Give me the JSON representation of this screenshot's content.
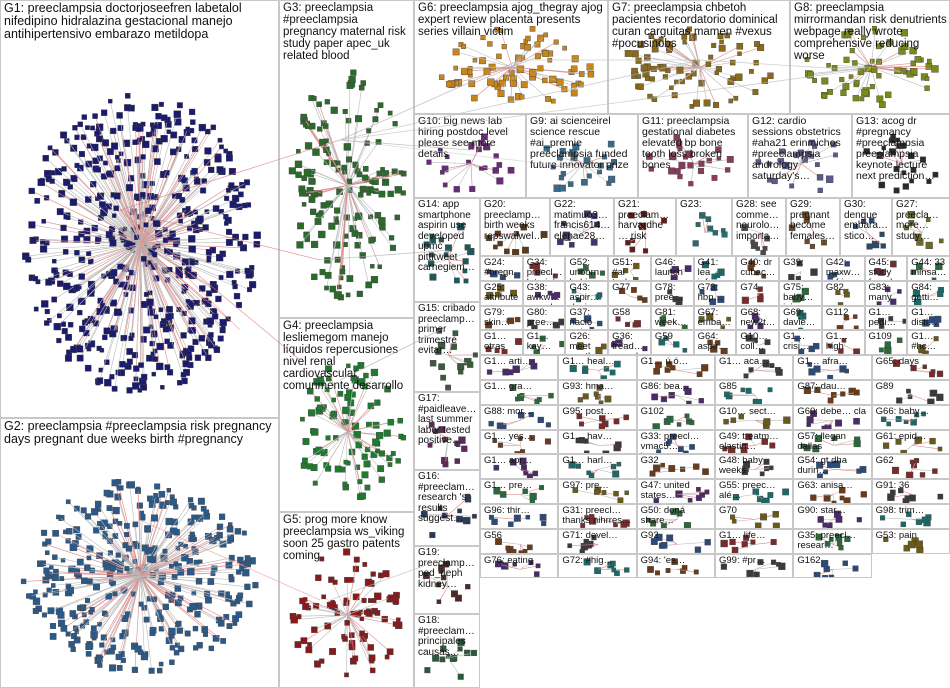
{
  "graph_title": "",
  "groups": [
    {
      "id": "G1",
      "text": "G1: preeclampsia doctorjoseefren labetalol nifedipino hidralazina gestacional manejo antihipertensivo embarazo metildopa",
      "color": "#1a1a6e"
    },
    {
      "id": "G2",
      "text": "G2: preeclampsia #preeclampsia risk pregnancy days pregnant due weeks birth #pregnancy",
      "color": "#2a5a8a"
    },
    {
      "id": "G3",
      "text": "G3: preeclampsia #preeclampsia pregnancy maternal risk study paper apec_uk related blood",
      "color": "#2a6a2a"
    },
    {
      "id": "G4",
      "text": "G4: preeclampsia lesliemegom manejo líquidos repercusiones nivel renal cardiovascular comunmente desarrollo",
      "color": "#1e7a2e"
    },
    {
      "id": "G5",
      "text": "G5: prog more know preeclampsia ws_viking soon 25 gastro patents coming",
      "color": "#8a1a1a"
    },
    {
      "id": "G6",
      "text": "G6: preeclampsia ajog_thegray ajog expert review placenta presents series villain victim",
      "color": "#c8861a"
    },
    {
      "id": "G7",
      "text": "G7: preeclampsia chbetoh pacientes recordatorio dominical curan carguitas mamen #vexus #pocusinobs",
      "color": "#8a6a1a"
    },
    {
      "id": "G8",
      "text": "G8: preeclampsia mirrormandan risk denutrients webpage really wrote comprehensive reducing worse",
      "color": "#7a8a1a"
    },
    {
      "id": "G10",
      "text": "G10: big news lab hiring postdoc level please see more details",
      "color": "#6a2a7a"
    },
    {
      "id": "G9",
      "text": "G9: ai scienceirel science rescue #ai_premie preeclampsia funded future innovator prize",
      "color": "#3a6a8a"
    },
    {
      "id": "G11",
      "text": "G11: preeclampsia gestational diabetes elevated bp bone tooth loss broken bones",
      "color": "#8a3a5a"
    },
    {
      "id": "G12",
      "text": "G12: cardio sessions obstetrics #aha21 erinmichos #preeclampsia andrology saturday's…",
      "color": "#5a5a8a"
    },
    {
      "id": "G13",
      "text": "G13: acog dr #pregnancy #preeclampsia preeclampsia keynote lecture next prediction…",
      "color": "#2a2a2a"
    },
    {
      "id": "G14",
      "text": "G14: app smartphone aspirin use developed upmc pittitweet carnegiem…",
      "color": "#1a5a5a"
    },
    {
      "id": "G20",
      "text": "G20: preeclamp… birth weeks repswalwel…",
      "color": "#5a3a1a"
    },
    {
      "id": "G22",
      "text": "G22: matimuo3… francis614… elenae28…",
      "color": "#3a3a6a"
    },
    {
      "id": "G21",
      "text": "G21: preeclam… harvardhe… risk",
      "color": "#6a1a1a"
    },
    {
      "id": "G23",
      "text": "G23:",
      "color": "#2a6a6a"
    },
    {
      "id": "G28",
      "text": "G28: see comme… neurolo… importa…",
      "color": "#4a4a4a"
    },
    {
      "id": "G29",
      "text": "G29: pregnant become females…",
      "color": "#6a4a2a"
    },
    {
      "id": "G30",
      "text": "G30: dengue embara… stico…",
      "color": "#2a4a6a"
    },
    {
      "id": "G27",
      "text": "G27: preecla… more… study…",
      "color": "#6a6a2a"
    },
    {
      "id": "G15",
      "text": "G15: cribado preeclamp… primer trimestre evitar…",
      "color": "#3a5a3a"
    },
    {
      "id": "G17",
      "text": "G17: #paidleave… last summer labor tested positive…",
      "color": "#5a2a5a"
    },
    {
      "id": "G16",
      "text": "G16: #preeclam… research 's results suggest…",
      "color": "#2a3a5a"
    },
    {
      "id": "G19",
      "text": "G19: preeclamp… ped_neph kidney…",
      "color": "#4a2a2a"
    },
    {
      "id": "G18",
      "text": "G18: #preeclam… principales causas…",
      "color": "#2a5a3a"
    }
  ],
  "small_groups": [
    {
      "text": "G24: #pregn… #cardi… #preec…"
    },
    {
      "text": "G34: preecl… latarjet vienn…"
    },
    {
      "text": "G52: unborn babie…"
    },
    {
      "text": "G51: #ai techn…"
    },
    {
      "text": "G46: launch ventur…"
    },
    {
      "text": "G41: lea inform…"
    },
    {
      "text": "G40: dr cubac… espec…"
    },
    {
      "text": "G39:"
    },
    {
      "text": "G42: maxw… asfrie…"
    },
    {
      "text": "G45: study found…"
    },
    {
      "text": "G44: 33 minsa…"
    },
    {
      "text": "G25: attribute success medici…"
    },
    {
      "text": "G38: awkw… preecl…"
    },
    {
      "text": "G43: aspir… dosi…"
    },
    {
      "text": "G77"
    },
    {
      "text": "G78: pree…"
    },
    {
      "text": "G73: hbp…"
    },
    {
      "text": "G74"
    },
    {
      "text": "G75: baby… join…"
    },
    {
      "text": "G82"
    },
    {
      "text": "G83: many"
    },
    {
      "text": "G84: getti…"
    },
    {
      "text": "G79: skin…"
    },
    {
      "text": "G80: pree…"
    },
    {
      "text": "G37: nació toda…"
    },
    {
      "text": "G58"
    },
    {
      "text": "G81: week…"
    },
    {
      "text": "G67: emba…"
    },
    {
      "text": "G68: new2t…"
    },
    {
      "text": "G69: davie…"
    },
    {
      "text": "G112"
    },
    {
      "text": "G1… pedi…"
    },
    {
      "text": "G1… disti…"
    },
    {
      "text": "G1… otras"
    },
    {
      "text": "G1… kay…"
    },
    {
      "text": "G26: meet another one…"
    },
    {
      "text": "G36: tread… preecl…"
    },
    {
      "text": "G59"
    },
    {
      "text": "G64: aspir…"
    },
    {
      "text": "G10… coll…"
    },
    {
      "text": "G1… crisi…"
    },
    {
      "text": "G1… high"
    },
    {
      "text": "G109"
    },
    {
      "text": "G1… #hc…"
    },
    {
      "text": "G1… arti…"
    },
    {
      "text": "G1… heal…"
    },
    {
      "text": "G1… ú ó…"
    },
    {
      "text": "G1… aca…"
    },
    {
      "text": "G1… afra…"
    },
    {
      "text": "G65: days"
    },
    {
      "text": "G1… gra…"
    },
    {
      "text": "G93: hma…"
    },
    {
      "text": "G86: bea…"
    },
    {
      "text": "G85"
    },
    {
      "text": "G87: dau…"
    },
    {
      "text": "G89"
    },
    {
      "text": "G88: mor…"
    },
    {
      "text": "G95: post…"
    },
    {
      "text": "G102"
    },
    {
      "text": "G10… sect…"
    },
    {
      "text": "G60: debe… cla"
    },
    {
      "text": "G66: baby…"
    },
    {
      "text": "G1… yes…"
    },
    {
      "text": "G1… hav…"
    },
    {
      "text": "G33: preecl… vmac5… having…"
    },
    {
      "text": "G49: treatm… elastin…"
    },
    {
      "text": "G57: llegan dallas"
    },
    {
      "text": "G61: epid…"
    },
    {
      "text": "G1… apr…"
    },
    {
      "text": "G1… harl…"
    },
    {
      "text": "G32"
    },
    {
      "text": "G48: baby weeks"
    },
    {
      "text": "G54: gt dha durin…"
    },
    {
      "text": "G62"
    },
    {
      "text": "G1… pre…"
    },
    {
      "text": "G97: pre…"
    },
    {
      "text": "G47: united states…"
    },
    {
      "text": "G55: preec… alé…"
    },
    {
      "text": "G63: anisa…"
    },
    {
      "text": "G91: 36"
    },
    {
      "text": "G96: thir…"
    },
    {
      "text": "G31: preecl… thanks nihrres…"
    },
    {
      "text": "G50: doná share…"
    },
    {
      "text": "G70"
    },
    {
      "text": "G90: star…"
    },
    {
      "text": "G98: trim…"
    },
    {
      "text": "G56"
    },
    {
      "text": "G71: devel…"
    },
    {
      "text": "G92"
    },
    {
      "text": "G1… life…"
    },
    {
      "text": "G35: preecl… resear…"
    },
    {
      "text": "G53: pain"
    },
    {
      "text": "G76: eating"
    },
    {
      "text": "G72: #hig…"
    },
    {
      "text": "G94: 'es…"
    },
    {
      "text": "G99: #pr…"
    },
    {
      "text": "G162"
    }
  ]
}
